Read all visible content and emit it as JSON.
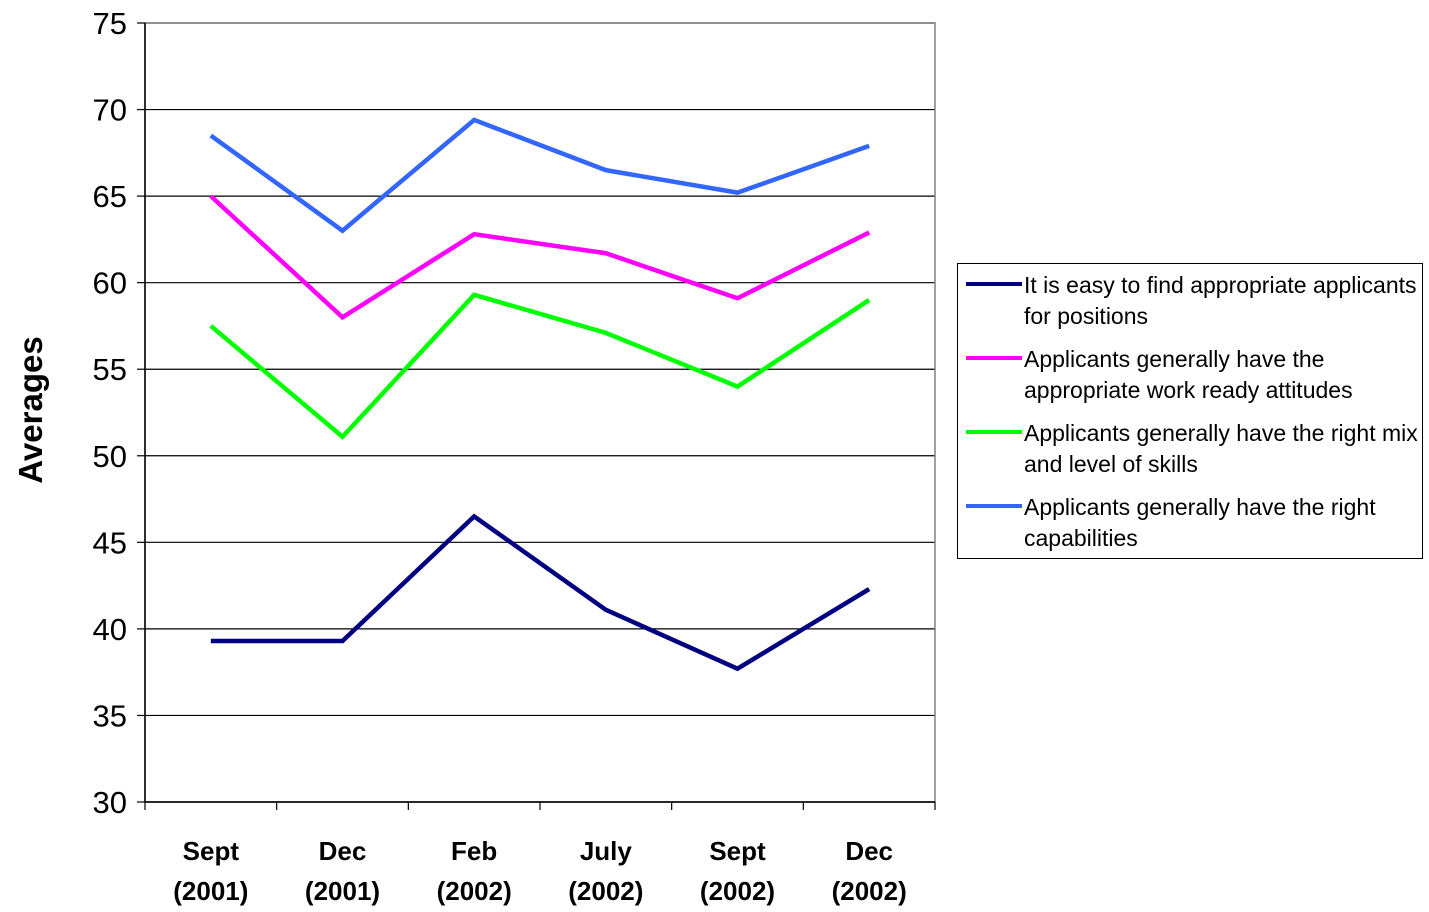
{
  "chart_data": {
    "type": "line",
    "title": "",
    "xlabel": "",
    "ylabel": "Averages",
    "ylim": [
      30,
      75
    ],
    "yticks": [
      "30",
      "35",
      "40",
      "45",
      "50",
      "55",
      "60",
      "65",
      "70",
      "75"
    ],
    "grid": "horizontal",
    "legend_position": "right",
    "categories": [
      {
        "line1": "Sept",
        "line2": "(2001)"
      },
      {
        "line1": "Dec",
        "line2": "(2001)"
      },
      {
        "line1": "Feb",
        "line2": "(2002)"
      },
      {
        "line1": "July",
        "line2": "(2002)"
      },
      {
        "line1": "Sept",
        "line2": "(2002)"
      },
      {
        "line1": "Dec",
        "line2": "(2002)"
      }
    ],
    "series": [
      {
        "name": "It is easy to find appropriate applicants for positions",
        "color": "#000080",
        "values": [
          39.3,
          39.3,
          46.5,
          41.1,
          37.7,
          42.3
        ]
      },
      {
        "name": "Applicants generally have the appropriate work ready attitudes",
        "color": "#ff00ff",
        "values": [
          65.0,
          58.0,
          62.8,
          61.7,
          59.1,
          62.9
        ]
      },
      {
        "name": "Applicants generally have the right mix and level of skills",
        "color": "#00ff00",
        "values": [
          57.5,
          51.1,
          59.3,
          57.1,
          54.0,
          59.0
        ]
      },
      {
        "name": "Applicants generally have the right capabilities",
        "color": "#3366ff",
        "values": [
          68.5,
          63.0,
          69.4,
          66.5,
          65.2,
          67.9
        ]
      }
    ]
  }
}
